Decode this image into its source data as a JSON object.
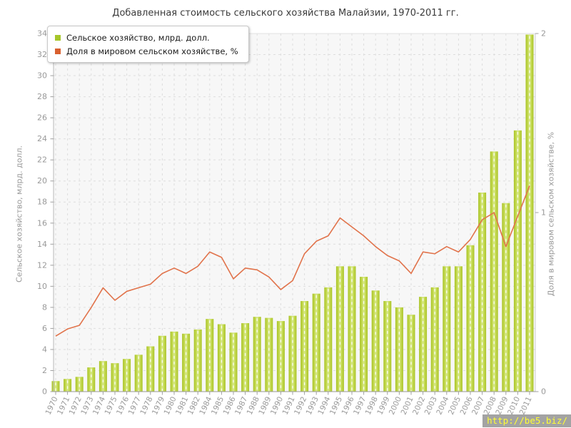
{
  "title": "Добавленная стоимость сельского хозяйства Малайзии, 1970-2011 гг.",
  "legend": [
    {
      "label": "Сельское хозяйство, млрд. долл.",
      "color": "#a6c62a"
    },
    {
      "label": "Доля в мировом сельском хозяйстве, %",
      "color": "#d9602f"
    }
  ],
  "left_axis": {
    "title": "Сельское хозяйство, млрд. долл.",
    "ticks": [
      0,
      2,
      4,
      6,
      8,
      10,
      12,
      14,
      16,
      18,
      20,
      22,
      24,
      26,
      28,
      30,
      32,
      34
    ]
  },
  "right_axis": {
    "title": "Доля в мировом сельском хозяйстве, %",
    "ticks": [
      0,
      1,
      2
    ]
  },
  "watermark": "http://be5.biz/",
  "colors": {
    "bar_edge": "#a9c325",
    "bar_mid": "#d9ea90",
    "bar_light": "#c6db55",
    "line": "#e1734b",
    "grid": "#dedede",
    "plot_bg": "#f7f7f7",
    "axis": "#a0a0a0",
    "tick_label": "#999999"
  },
  "chart_data": {
    "type": "bar+line",
    "title": "Добавленная стоимость сельского хозяйства Малайзии, 1970-2011 гг.",
    "categories": [
      "1970",
      "1971",
      "1972",
      "1973",
      "1974",
      "1975",
      "1976",
      "1977",
      "1978",
      "1979",
      "1980",
      "1981",
      "1982",
      "1984",
      "1985",
      "1986",
      "1987",
      "1988",
      "1989",
      "1990",
      "1991",
      "1992",
      "1993",
      "1994",
      "1995",
      "1996",
      "1997",
      "1998",
      "1999",
      "2000",
      "2001",
      "2002",
      "2003",
      "2004",
      "2005",
      "2006",
      "2007",
      "2008",
      "2009",
      "2010",
      "2011"
    ],
    "series": [
      {
        "name": "Сельское хозяйство, млрд. долл.",
        "type": "bar",
        "axis": "left",
        "values": [
          1.0,
          1.2,
          1.4,
          2.3,
          2.9,
          2.7,
          3.1,
          3.5,
          4.3,
          5.3,
          5.7,
          5.5,
          5.9,
          6.9,
          6.4,
          5.6,
          6.5,
          7.1,
          7.0,
          6.7,
          7.2,
          8.6,
          9.3,
          9.9,
          11.9,
          11.9,
          10.9,
          9.6,
          8.6,
          8.0,
          7.3,
          9.0,
          9.9,
          11.9,
          11.9,
          13.9,
          18.9,
          22.8,
          17.9,
          24.8,
          33.9
        ]
      },
      {
        "name": "Доля в мировом сельском хозяйстве, %",
        "type": "line",
        "axis": "right",
        "values": [
          0.31,
          0.35,
          0.37,
          0.47,
          0.58,
          0.51,
          0.56,
          0.58,
          0.6,
          0.66,
          0.69,
          0.66,
          0.7,
          0.78,
          0.75,
          0.63,
          0.69,
          0.68,
          0.64,
          0.57,
          0.62,
          0.77,
          0.84,
          0.87,
          0.97,
          0.92,
          0.87,
          0.81,
          0.76,
          0.73,
          0.66,
          0.78,
          0.77,
          0.81,
          0.78,
          0.85,
          0.96,
          1.0,
          0.81,
          0.98,
          1.15
        ]
      }
    ],
    "ylim_left": [
      0,
      34
    ],
    "ylim_right": [
      0,
      2
    ],
    "grid": true,
    "legend_position": "top-left"
  }
}
